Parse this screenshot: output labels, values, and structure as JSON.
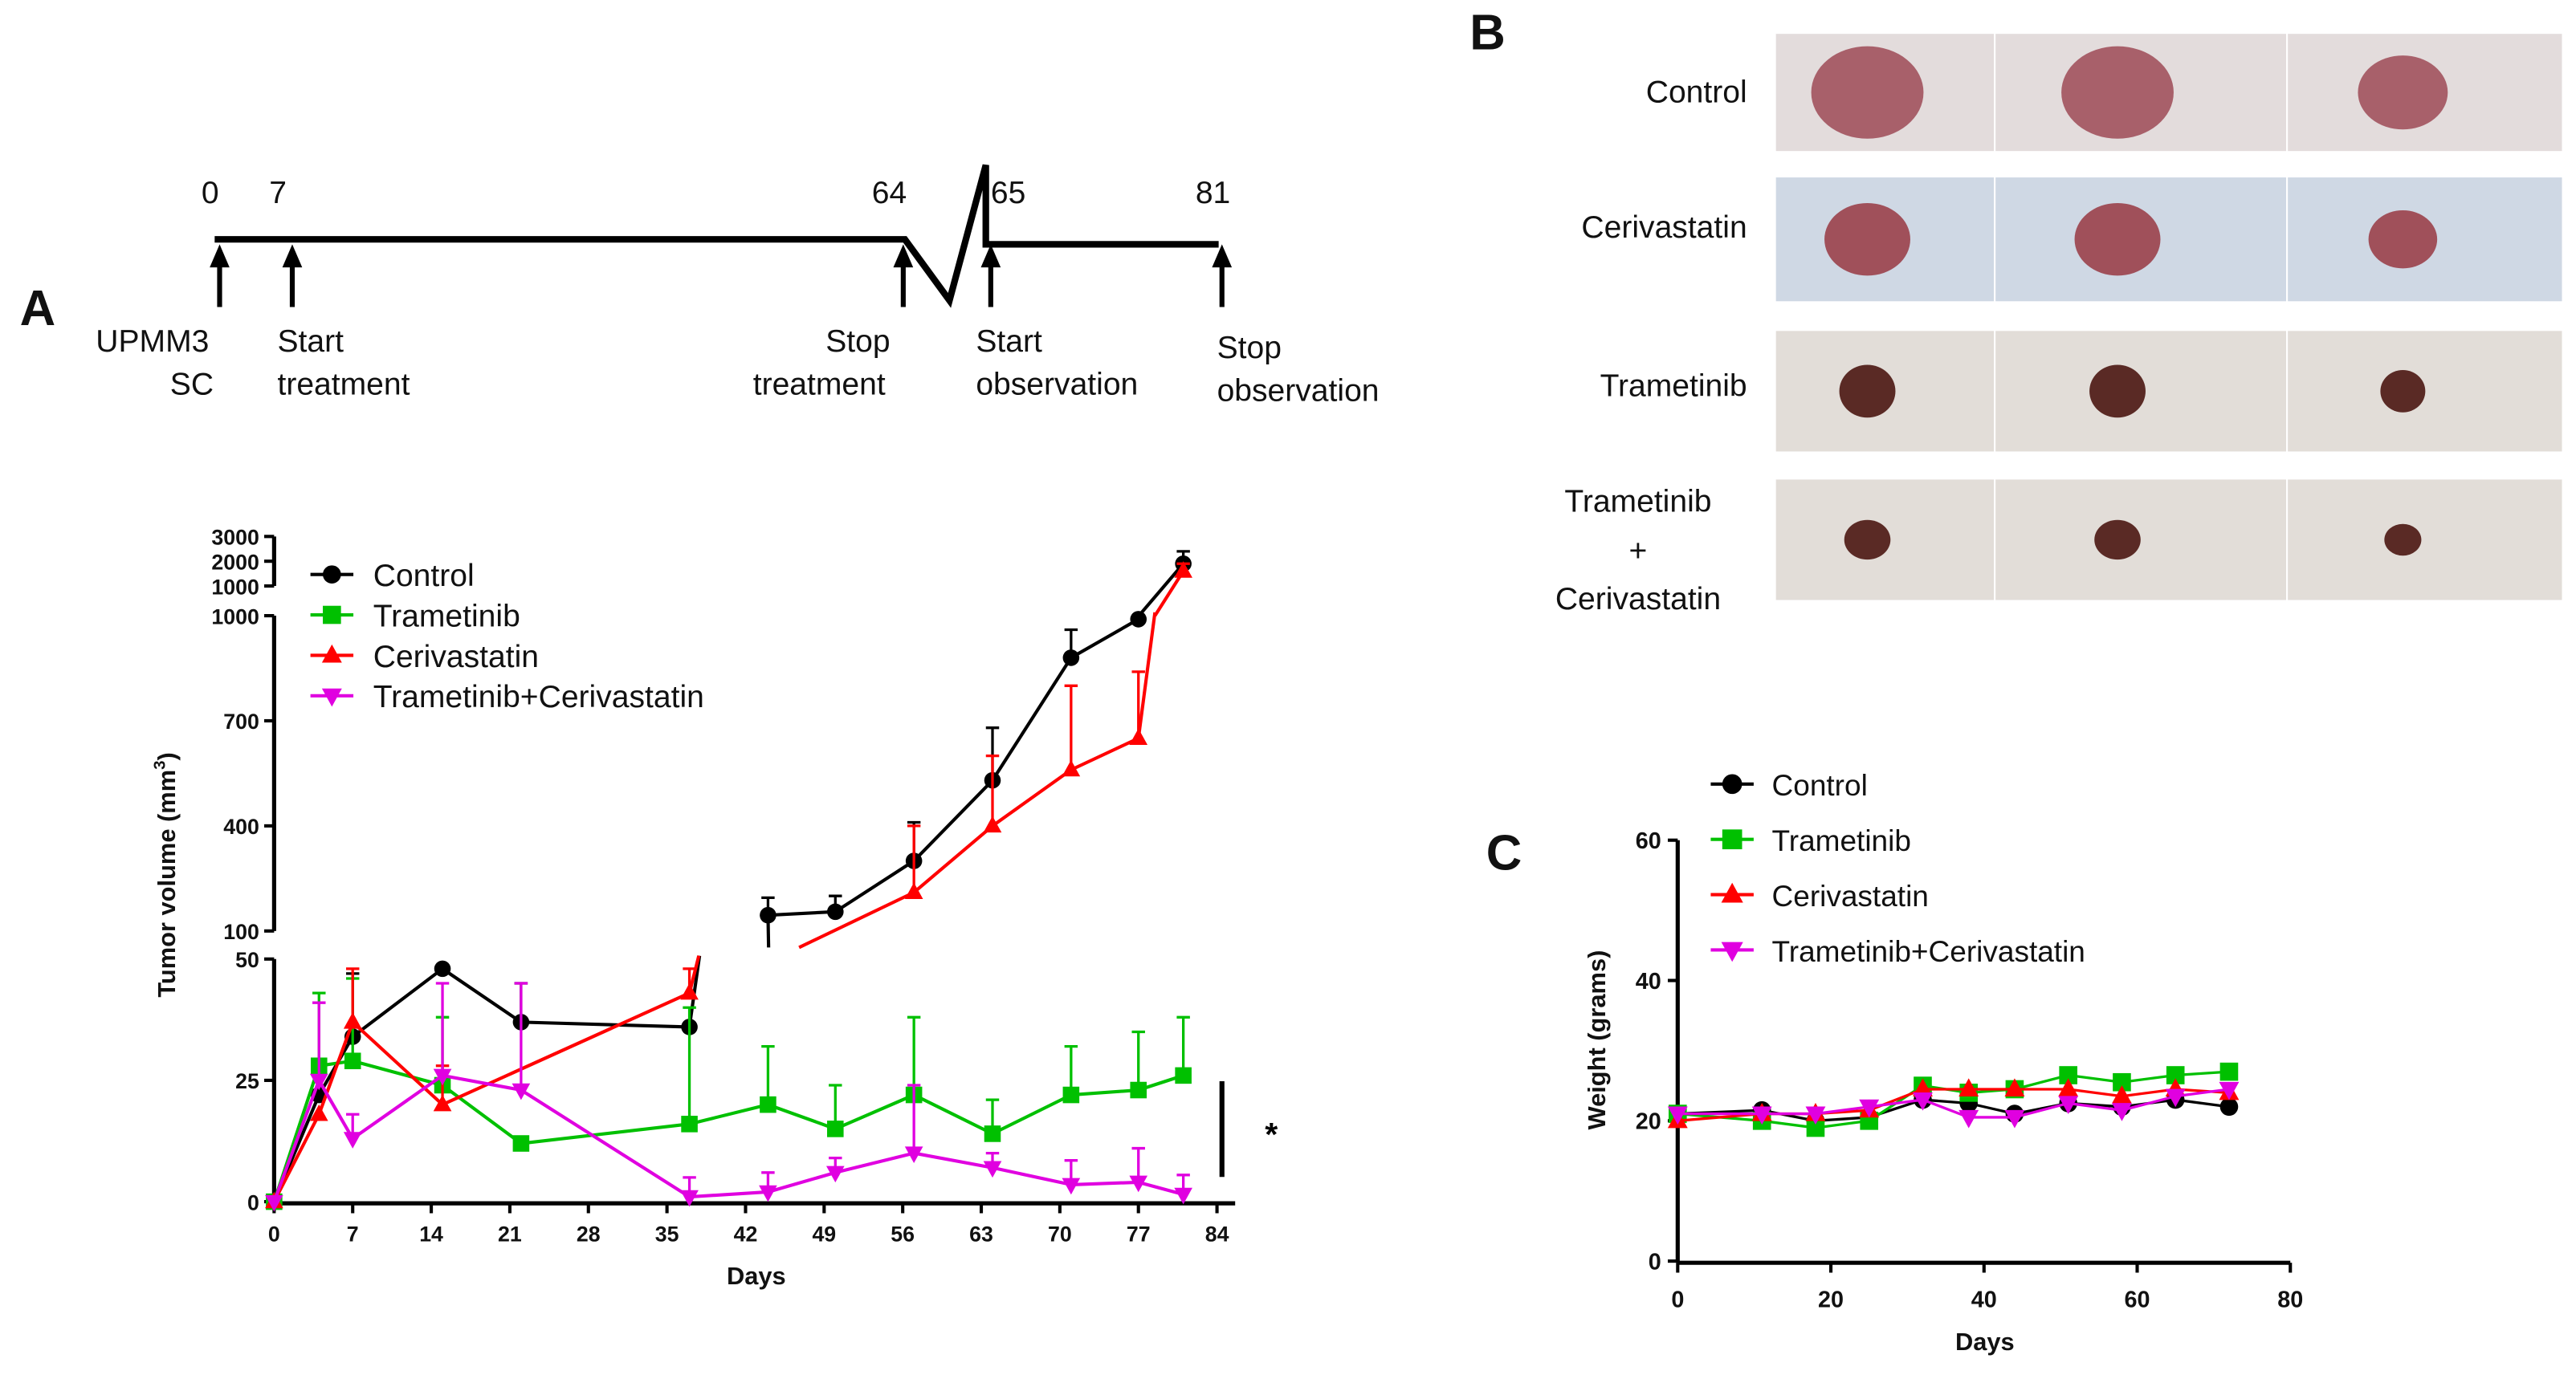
{
  "panels": {
    "a": "A",
    "b": "B",
    "c": "C"
  },
  "timeline": {
    "days": [
      "0",
      "7",
      "64",
      "65",
      "81"
    ],
    "events": [
      "UPMM3",
      "SC",
      "Start",
      "treatment",
      "Stop",
      "treatment",
      "Start",
      "observation",
      "Stop",
      "observation"
    ]
  },
  "photos": {
    "rows": [
      "Control",
      "Cerivastatin",
      "Trametinib",
      "Trametinib",
      "+",
      "Cerivastatin"
    ]
  },
  "significance": "*",
  "chart_data": [
    {
      "type": "line",
      "title": "",
      "xlabel": "Days",
      "ylabel": "Tumor volume (mm",
      "ylabel_sup": "3",
      "xticks": [
        "0",
        "7",
        "14",
        "21",
        "28",
        "35",
        "42",
        "49",
        "56",
        "63",
        "70",
        "77",
        "84"
      ],
      "yticks_lower": [
        "0",
        "25",
        "50"
      ],
      "yticks_middle": [
        "100",
        "400",
        "700",
        "1000"
      ],
      "yticks_upper": [
        "1000",
        "2000",
        "3000"
      ],
      "xlim": [
        0,
        84
      ],
      "ylim_segments": [
        [
          0,
          50
        ],
        [
          100,
          1000
        ],
        [
          1000,
          3000
        ]
      ],
      "legend_position": "top-left",
      "x": [
        0,
        4,
        7,
        15,
        22,
        37,
        44,
        50,
        57,
        64,
        71,
        77,
        81
      ],
      "series": [
        {
          "name": "Control",
          "color": "#000000",
          "marker": "circle",
          "values": [
            0,
            22,
            34,
            48,
            37,
            36,
            145,
            155,
            300,
            530,
            880,
            990,
            1900
          ],
          "err": [
            0,
            6,
            13,
            0,
            8,
            0,
            50,
            45,
            110,
            150,
            80,
            0,
            500
          ]
        },
        {
          "name": "Trametinib",
          "color": "#00c000",
          "marker": "square",
          "values": [
            0,
            28,
            29,
            24,
            12,
            16,
            20,
            15,
            22,
            14,
            22,
            23,
            26
          ],
          "err": [
            0,
            15,
            17,
            14,
            0,
            24,
            12,
            9,
            16,
            7,
            10,
            12,
            12
          ]
        },
        {
          "name": "Cerivastatin",
          "color": "#ff0000",
          "marker": "triangle-up",
          "values": [
            0,
            18,
            37,
            20,
            null,
            43,
            null,
            null,
            210,
            400,
            560,
            650,
            1600
          ],
          "err": [
            0,
            0,
            11,
            8,
            0,
            5,
            0,
            0,
            190,
            200,
            240,
            190,
            300
          ]
        },
        {
          "name": "Trametinib+Cerivastatin",
          "color": "#e000e0",
          "marker": "triangle-down",
          "values": [
            0,
            25,
            13,
            26,
            23,
            1,
            2,
            6,
            10,
            7,
            3.5,
            4,
            1.5
          ],
          "err": [
            0,
            16,
            5,
            19,
            22,
            4,
            4,
            3,
            14,
            3,
            5,
            7,
            4
          ]
        }
      ]
    },
    {
      "type": "line",
      "title": "",
      "xlabel": "Days",
      "ylabel": "Weight (grams)",
      "xticks": [
        "0",
        "20",
        "40",
        "60",
        "80"
      ],
      "yticks": [
        "0",
        "20",
        "40",
        "60"
      ],
      "xlim": [
        0,
        80
      ],
      "ylim": [
        0,
        60
      ],
      "legend_position": "top-left",
      "x": [
        0,
        11,
        18,
        25,
        32,
        38,
        44,
        51,
        58,
        65,
        72
      ],
      "series": [
        {
          "name": "Control",
          "color": "#000000",
          "marker": "circle",
          "values": [
            21,
            21.5,
            20,
            20.5,
            23,
            22.5,
            21,
            22.5,
            22,
            23,
            22
          ]
        },
        {
          "name": "Trametinib",
          "color": "#00c000",
          "marker": "square",
          "values": [
            21,
            20,
            19,
            20,
            25,
            24,
            24.5,
            26.5,
            25.5,
            26.5,
            27
          ]
        },
        {
          "name": "Cerivastatin",
          "color": "#ff0000",
          "marker": "triangle-up",
          "values": [
            20,
            21,
            21,
            21.5,
            24.5,
            24.5,
            24.5,
            24.5,
            23.5,
            24.5,
            24
          ]
        },
        {
          "name": "Trametinib+Cerivastatin",
          "color": "#e000e0",
          "marker": "triangle-down",
          "values": [
            21,
            21,
            21,
            22,
            23,
            20.5,
            20.5,
            22.5,
            21.5,
            23.5,
            24.5
          ]
        }
      ]
    }
  ]
}
